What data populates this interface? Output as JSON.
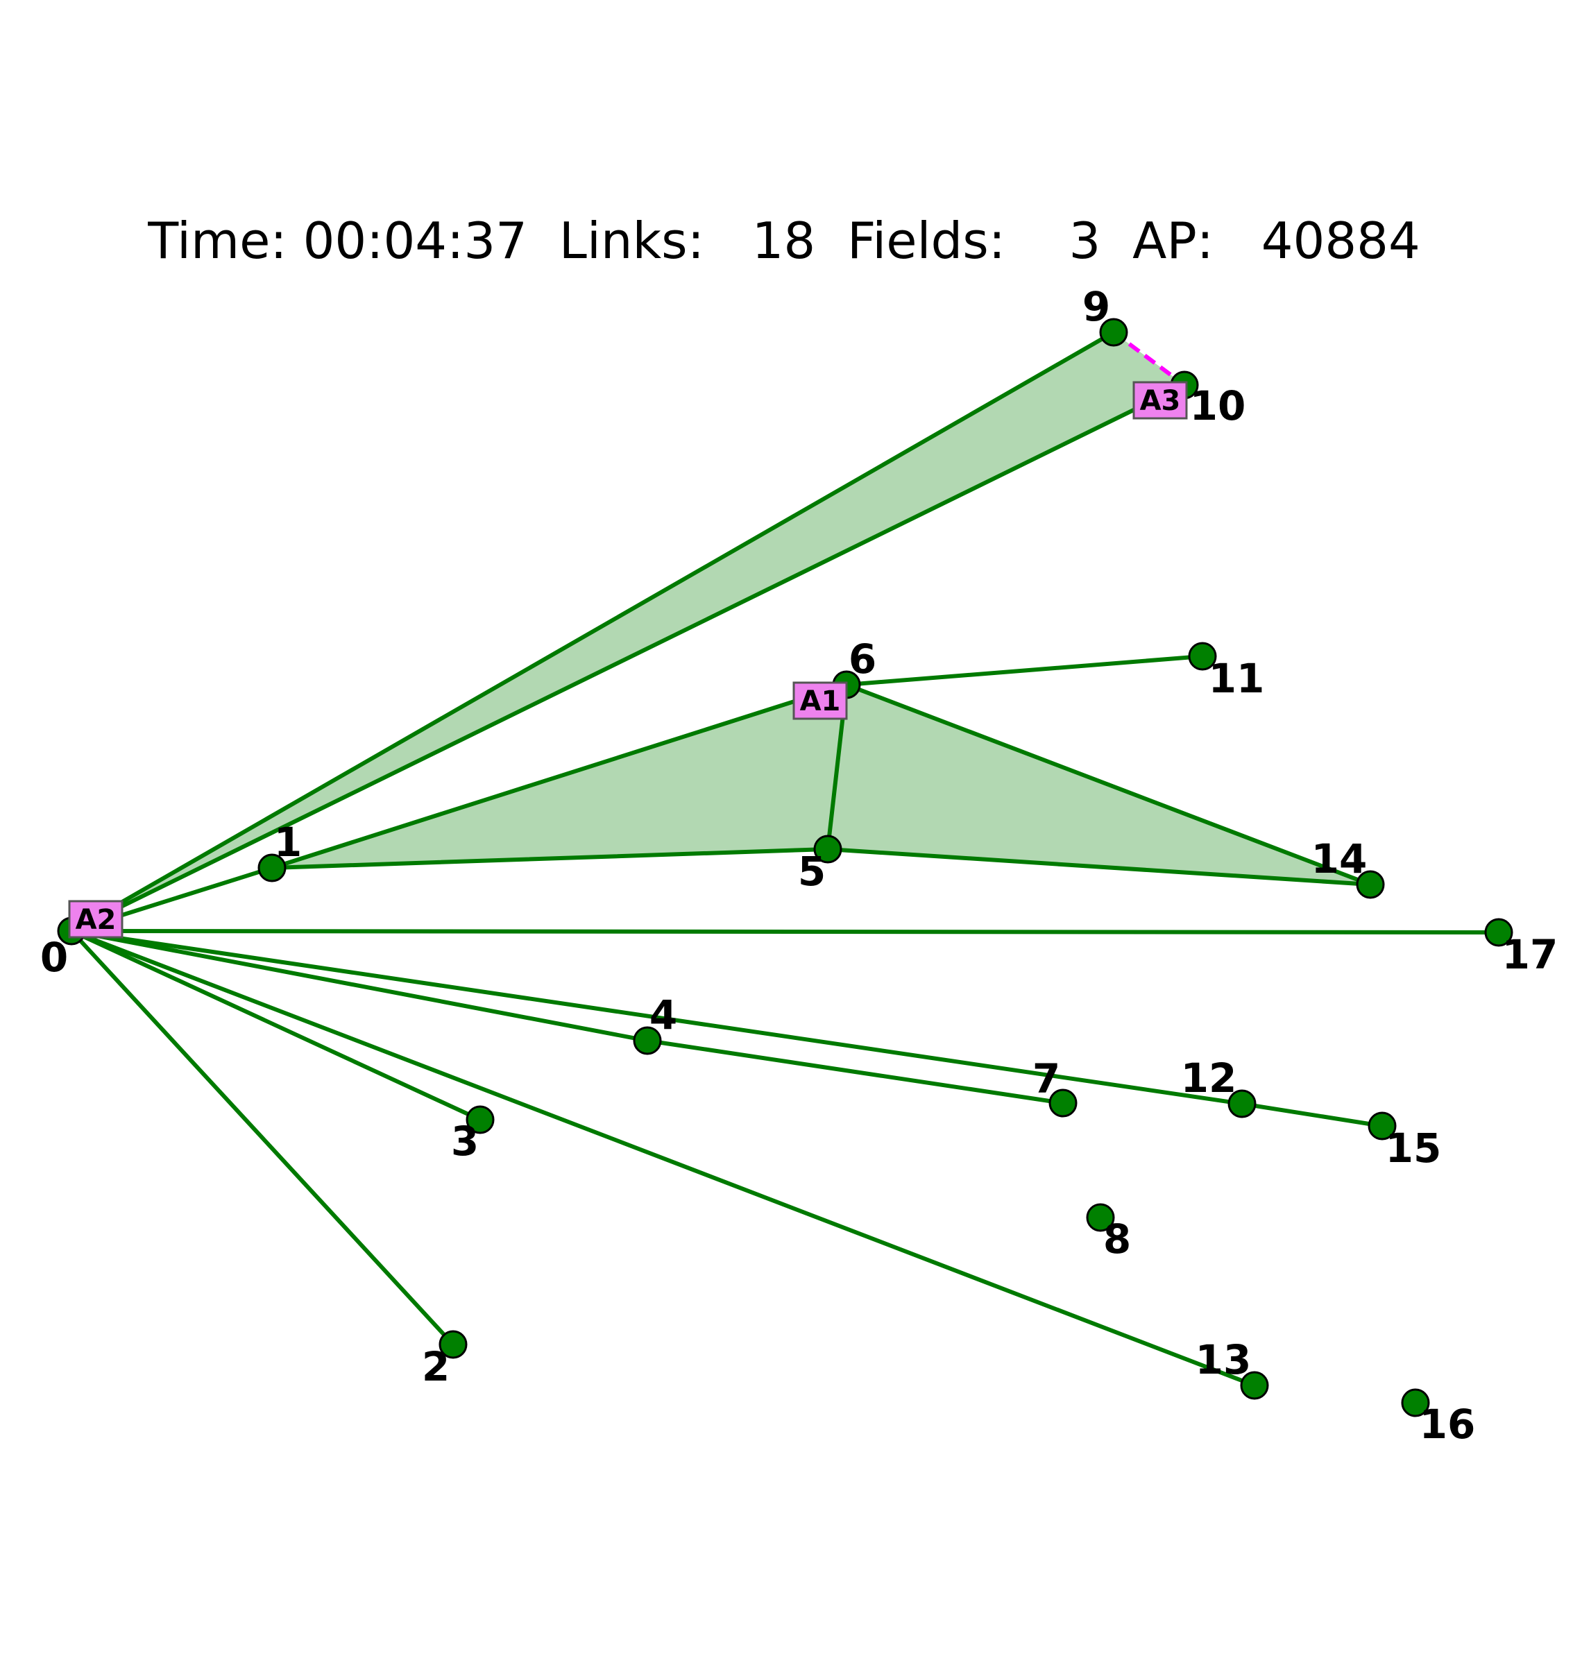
{
  "status": {
    "time_label": "Time:",
    "time": "00:04:37",
    "links_label": "Links:",
    "links": "18",
    "fields_label": "Fields:",
    "fields": "3",
    "ap_label": "AP:",
    "ap": "40884"
  },
  "colors": {
    "portal": "#008000",
    "link": "#007a00",
    "field": "#b2d8b2",
    "agent": "#ee82ee",
    "agent_path": "#ff00ff"
  },
  "portals": [
    "0",
    "1",
    "2",
    "3",
    "4",
    "5",
    "6",
    "7",
    "8",
    "9",
    "10",
    "11",
    "12",
    "13",
    "14",
    "15",
    "16",
    "17"
  ],
  "agents": [
    "A1",
    "A2",
    "A3"
  ]
}
